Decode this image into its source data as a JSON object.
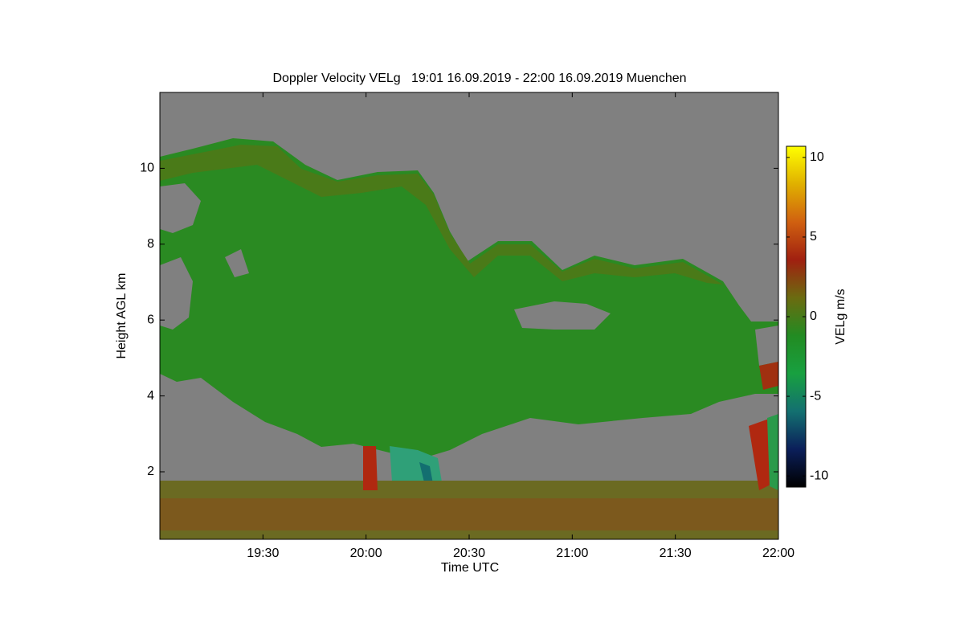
{
  "chart_data": {
    "type": "heatmap",
    "title": "Doppler Velocity VELg   19:01 16.09.2019 - 22:00 16.09.2019 Muenchen",
    "xlabel": "Time UTC",
    "ylabel": "Height AGL km",
    "xlim": [
      19,
      22
    ],
    "xticks": [
      {
        "value": 19.5,
        "label": "19:30"
      },
      {
        "value": 20,
        "label": "20:00"
      },
      {
        "value": 20.5,
        "label": "20:30"
      },
      {
        "value": 21,
        "label": "21:00"
      },
      {
        "value": 21.5,
        "label": "21:30"
      },
      {
        "value": 22,
        "label": "22:00"
      }
    ],
    "ylim": [
      0.22,
      12
    ],
    "yticks": [
      2,
      4,
      6,
      8,
      10
    ],
    "background": "#808080",
    "colorbar": {
      "label": "VELg m/s",
      "lim": [
        -10.7,
        10.7
      ],
      "ticks": [
        -10,
        -5,
        0,
        5,
        10
      ],
      "colormap": [
        "#000000",
        "#0b1f5a",
        "#137070",
        "#18a040",
        "#228b22",
        "#6b6b10",
        "#a02010",
        "#d06010",
        "#e0b000",
        "#ffff00"
      ]
    }
  }
}
